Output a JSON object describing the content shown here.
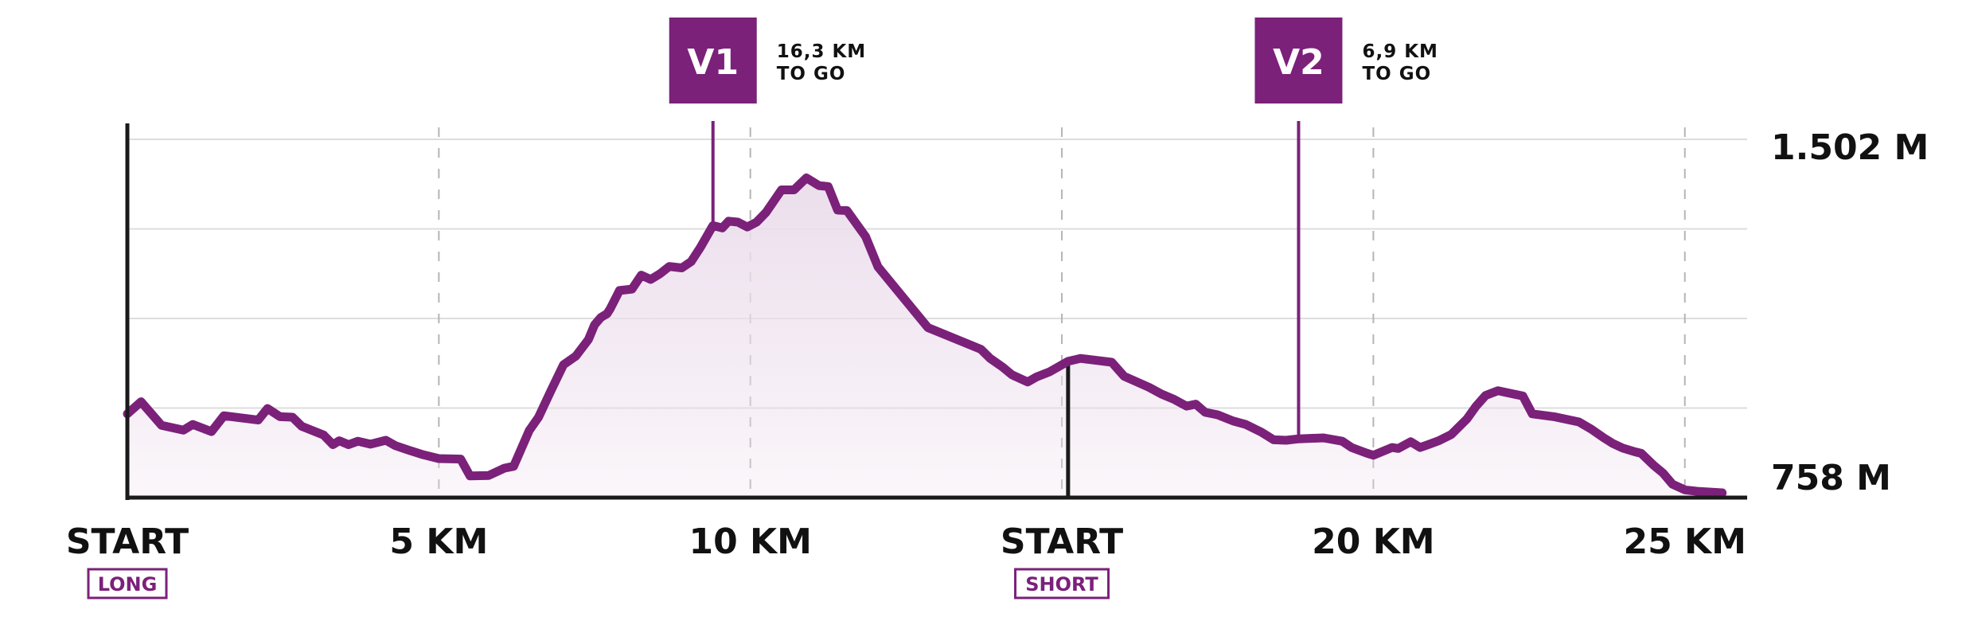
{
  "colors": {
    "accent": "#7b217a",
    "fill": "#ecdeec",
    "axis": "#1a1a1a",
    "grid": "#dddddd",
    "dash": "#b5b5b5"
  },
  "chart_data": {
    "type": "area",
    "title": "",
    "xlabel": "",
    "ylabel": "",
    "xlim": [
      0,
      26
    ],
    "ylim": [
      758,
      1502
    ],
    "y_labels": [
      "1.502 M",
      "758 M"
    ],
    "x_ticks": [
      {
        "value": 0,
        "label": "START",
        "tag": "LONG"
      },
      {
        "value": 5,
        "label": "5 KM",
        "tag": ""
      },
      {
        "value": 10,
        "label": "10 KM",
        "tag": ""
      },
      {
        "value": 15,
        "label": "START",
        "tag": "SHORT"
      },
      {
        "value": 20,
        "label": "20 KM",
        "tag": ""
      },
      {
        "value": 25,
        "label": "25 KM",
        "tag": ""
      }
    ],
    "grid": {
      "horizontal": true,
      "vertical_dashed": true
    },
    "stations": [
      {
        "code": "V1",
        "x": 9.4,
        "line1": "16,3 KM",
        "line2": "TO GO"
      },
      {
        "code": "V2",
        "x": 18.8,
        "line1": "6,9 KM",
        "line2": "TO GO"
      }
    ],
    "short_start_x": 15.1,
    "x": [
      0,
      0.22,
      0.55,
      0.9,
      1.05,
      1.35,
      1.55,
      2.1,
      2.25,
      2.45,
      2.65,
      2.8,
      3.15,
      3.3,
      3.4,
      3.55,
      3.7,
      3.9,
      4.15,
      4.3,
      4.55,
      4.75,
      5,
      5.35,
      5.5,
      5.8,
      6.05,
      6.2,
      6.45,
      6.6,
      6.8,
      7.0,
      7.2,
      7.4,
      7.5,
      7.6,
      7.7,
      7.75,
      7.9,
      8.1,
      8.25,
      8.4,
      8.55,
      8.7,
      8.9,
      9.05,
      9.2,
      9.4,
      9.55,
      9.65,
      9.8,
      9.95,
      10.1,
      10.25,
      10.5,
      10.7,
      10.9,
      11.1,
      11.25,
      11.4,
      11.55,
      11.85,
      12.05,
      12.85,
      13.7,
      13.85,
      14.05,
      14.2,
      14.45,
      14.6,
      14.8,
      15.1,
      15.3,
      15.8,
      16.0,
      16.4,
      16.6,
      16.8,
      17.0,
      17.15,
      17.3,
      17.5,
      17.75,
      17.95,
      18.2,
      18.4,
      18.6,
      18.8,
      19.2,
      19.5,
      19.65,
      19.9,
      20.0,
      20.3,
      20.4,
      20.6,
      20.75,
      20.9,
      21.05,
      21.25,
      21.5,
      21.65,
      21.8,
      22.0,
      22.4,
      22.55,
      22.9,
      23.3,
      23.5,
      23.7,
      23.85,
      24.0,
      24.2,
      24.3,
      24.5,
      24.65,
      24.8,
      25.0,
      25.2,
      25.6
    ],
    "y": [
      932,
      957,
      908,
      898,
      910,
      895,
      928,
      919,
      943,
      926,
      925,
      906,
      888,
      868,
      876,
      868,
      875,
      869,
      877,
      866,
      855,
      847,
      839,
      838,
      803,
      804,
      819,
      823,
      897,
      925,
      980,
      1034,
      1052,
      1086,
      1117,
      1132,
      1140,
      1150,
      1188,
      1191,
      1220,
      1211,
      1223,
      1238,
      1235,
      1248,
      1278,
      1323,
      1318,
      1332,
      1330,
      1320,
      1330,
      1350,
      1397,
      1397,
      1422,
      1406,
      1404,
      1355,
      1354,
      1300,
      1237,
      1111,
      1066,
      1047,
      1029,
      1013,
      998,
      1009,
      1019,
      1041,
      1047,
      1039,
      1010,
      987,
      973,
      962,
      948,
      952,
      935,
      930,
      917,
      910,
      894,
      878,
      877,
      880,
      882,
      875,
      862,
      850,
      846,
      862,
      860,
      874,
      862,
      869,
      876,
      889,
      921,
      948,
      970,
      980,
      969,
      932,
      926,
      915,
      900,
      882,
      870,
      861,
      853,
      850,
      825,
      809,
      786,
      774,
      771,
      768
    ]
  }
}
